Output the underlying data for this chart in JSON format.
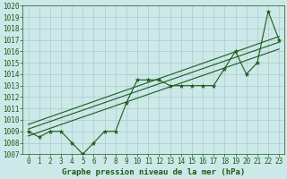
{
  "title": "Graphe pression niveau de la mer (hPa)",
  "bg_color": "#cce8e8",
  "grid_color": "#aacccc",
  "line_color": "#1a5c1a",
  "xlim": [
    -0.5,
    23.5
  ],
  "ylim": [
    1007,
    1020
  ],
  "yticks": [
    1007,
    1008,
    1009,
    1010,
    1011,
    1012,
    1013,
    1014,
    1015,
    1016,
    1017,
    1018,
    1019,
    1020
  ],
  "xticks": [
    0,
    1,
    2,
    3,
    4,
    5,
    6,
    7,
    8,
    9,
    10,
    11,
    12,
    13,
    14,
    15,
    16,
    17,
    18,
    19,
    20,
    21,
    22,
    23
  ],
  "pressure_data": [
    1009.0,
    1008.5,
    1009.0,
    1009.0,
    1008.0,
    1007.0,
    1008.0,
    1009.0,
    1009.0,
    1011.5,
    1013.5,
    1013.5,
    1013.5,
    1013.0,
    1013.0,
    1013.0,
    1013.0,
    1013.0,
    1014.5,
    1016.0,
    1014.0,
    1015.0,
    1019.5,
    1017.0
  ],
  "trend_lines": [
    [
      1008.6,
      1016.2
    ],
    [
      1009.2,
      1016.8
    ],
    [
      1009.6,
      1017.3
    ]
  ],
  "tick_fontsize": 5.5,
  "title_fontsize": 6.5,
  "linewidth": 0.8,
  "markersize": 3.5
}
